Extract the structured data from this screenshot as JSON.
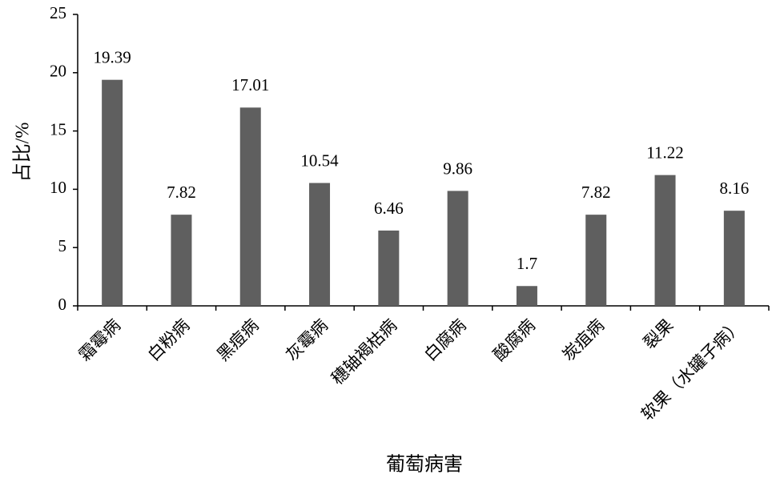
{
  "chart_data": {
    "type": "bar",
    "xlabel": "葡萄病害",
    "ylabel": "占比/%",
    "categories": [
      "霜霉病",
      "白粉病",
      "黑痘病",
      "灰霉病",
      "穗轴褐枯病",
      "白腐病",
      "酸腐病",
      "炭疽病",
      "裂果",
      "软果（水罐子病）"
    ],
    "values": [
      19.39,
      7.82,
      17.01,
      10.54,
      6.46,
      9.86,
      1.7,
      7.82,
      11.22,
      8.16
    ],
    "color": "#5f5f5f",
    "ylim": [
      0,
      25
    ],
    "yticks": [
      0,
      5,
      10,
      15,
      20,
      25
    ],
    "grid": false
  }
}
